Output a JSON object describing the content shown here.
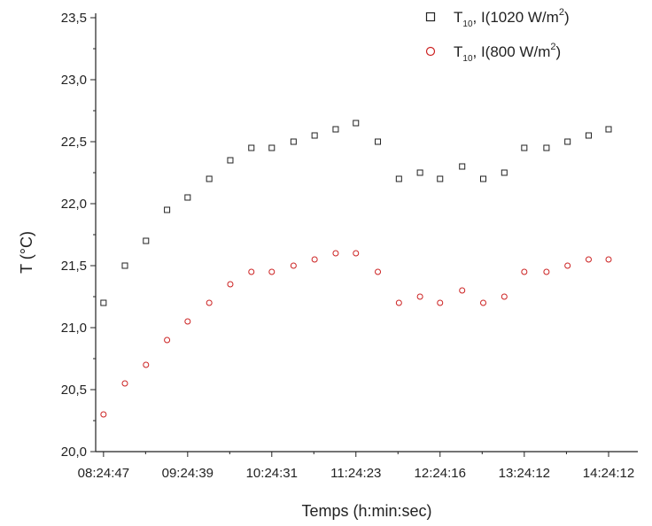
{
  "chart_data": {
    "type": "scatter",
    "xlabel": "Temps (h:min:sec)",
    "ylabel": "T (°C)",
    "ylim": [
      20.0,
      23.5
    ],
    "x_range_hours": [
      8.32,
      14.75
    ],
    "grid": false,
    "legend_position": "top-right",
    "x_tick_labels": [
      "08:24:47",
      "09:24:39",
      "10:24:31",
      "11:24:23",
      "12:24:16",
      "13:24:12",
      "14:24:12"
    ],
    "y_tick_labels": [
      "20,0",
      "20,5",
      "21,0",
      "21,5",
      "22,0",
      "22,5",
      "23,0",
      "23,5"
    ],
    "series": [
      {
        "legend": {
          "base": "T",
          "sub": "10",
          "mid": ", I(1020 W/m",
          "sup": "2",
          "tail": ")"
        },
        "marker": "square",
        "color": "#222222",
        "x": [
          "08:24:47",
          "08:40:00",
          "08:55:00",
          "09:10:00",
          "09:24:39",
          "09:40:00",
          "09:55:00",
          "10:10:00",
          "10:24:31",
          "10:40:00",
          "10:55:00",
          "11:10:00",
          "11:24:23",
          "11:40:00",
          "11:55:00",
          "12:10:00",
          "12:24:16",
          "12:40:00",
          "12:55:00",
          "13:10:00",
          "13:24:12",
          "13:40:00",
          "13:55:00",
          "14:10:00",
          "14:24:12"
        ],
        "y": [
          21.2,
          21.5,
          21.7,
          21.95,
          22.05,
          22.2,
          22.35,
          22.45,
          22.45,
          22.5,
          22.55,
          22.6,
          22.65,
          22.5,
          22.2,
          22.25,
          22.2,
          22.3,
          22.2,
          22.25,
          22.45,
          22.45,
          22.5,
          22.55,
          22.6
        ]
      },
      {
        "legend": {
          "base": "T",
          "sub": "10",
          "mid": ", I(800 W/m",
          "sup": "2",
          "tail": ")"
        },
        "marker": "circle",
        "color": "#cc2222",
        "x": [
          "08:24:47",
          "08:40:00",
          "08:55:00",
          "09:10:00",
          "09:24:39",
          "09:40:00",
          "09:55:00",
          "10:10:00",
          "10:24:31",
          "10:40:00",
          "10:55:00",
          "11:10:00",
          "11:24:23",
          "11:40:00",
          "11:55:00",
          "12:10:00",
          "12:24:16",
          "12:40:00",
          "12:55:00",
          "13:10:00",
          "13:24:12",
          "13:40:00",
          "13:55:00",
          "14:10:00",
          "14:24:12"
        ],
        "y": [
          20.3,
          20.55,
          20.7,
          20.9,
          21.05,
          21.2,
          21.35,
          21.45,
          21.45,
          21.5,
          21.55,
          21.6,
          21.6,
          21.45,
          21.2,
          21.25,
          21.2,
          21.3,
          21.2,
          21.25,
          21.45,
          21.45,
          21.5,
          21.55,
          21.55
        ]
      }
    ]
  }
}
